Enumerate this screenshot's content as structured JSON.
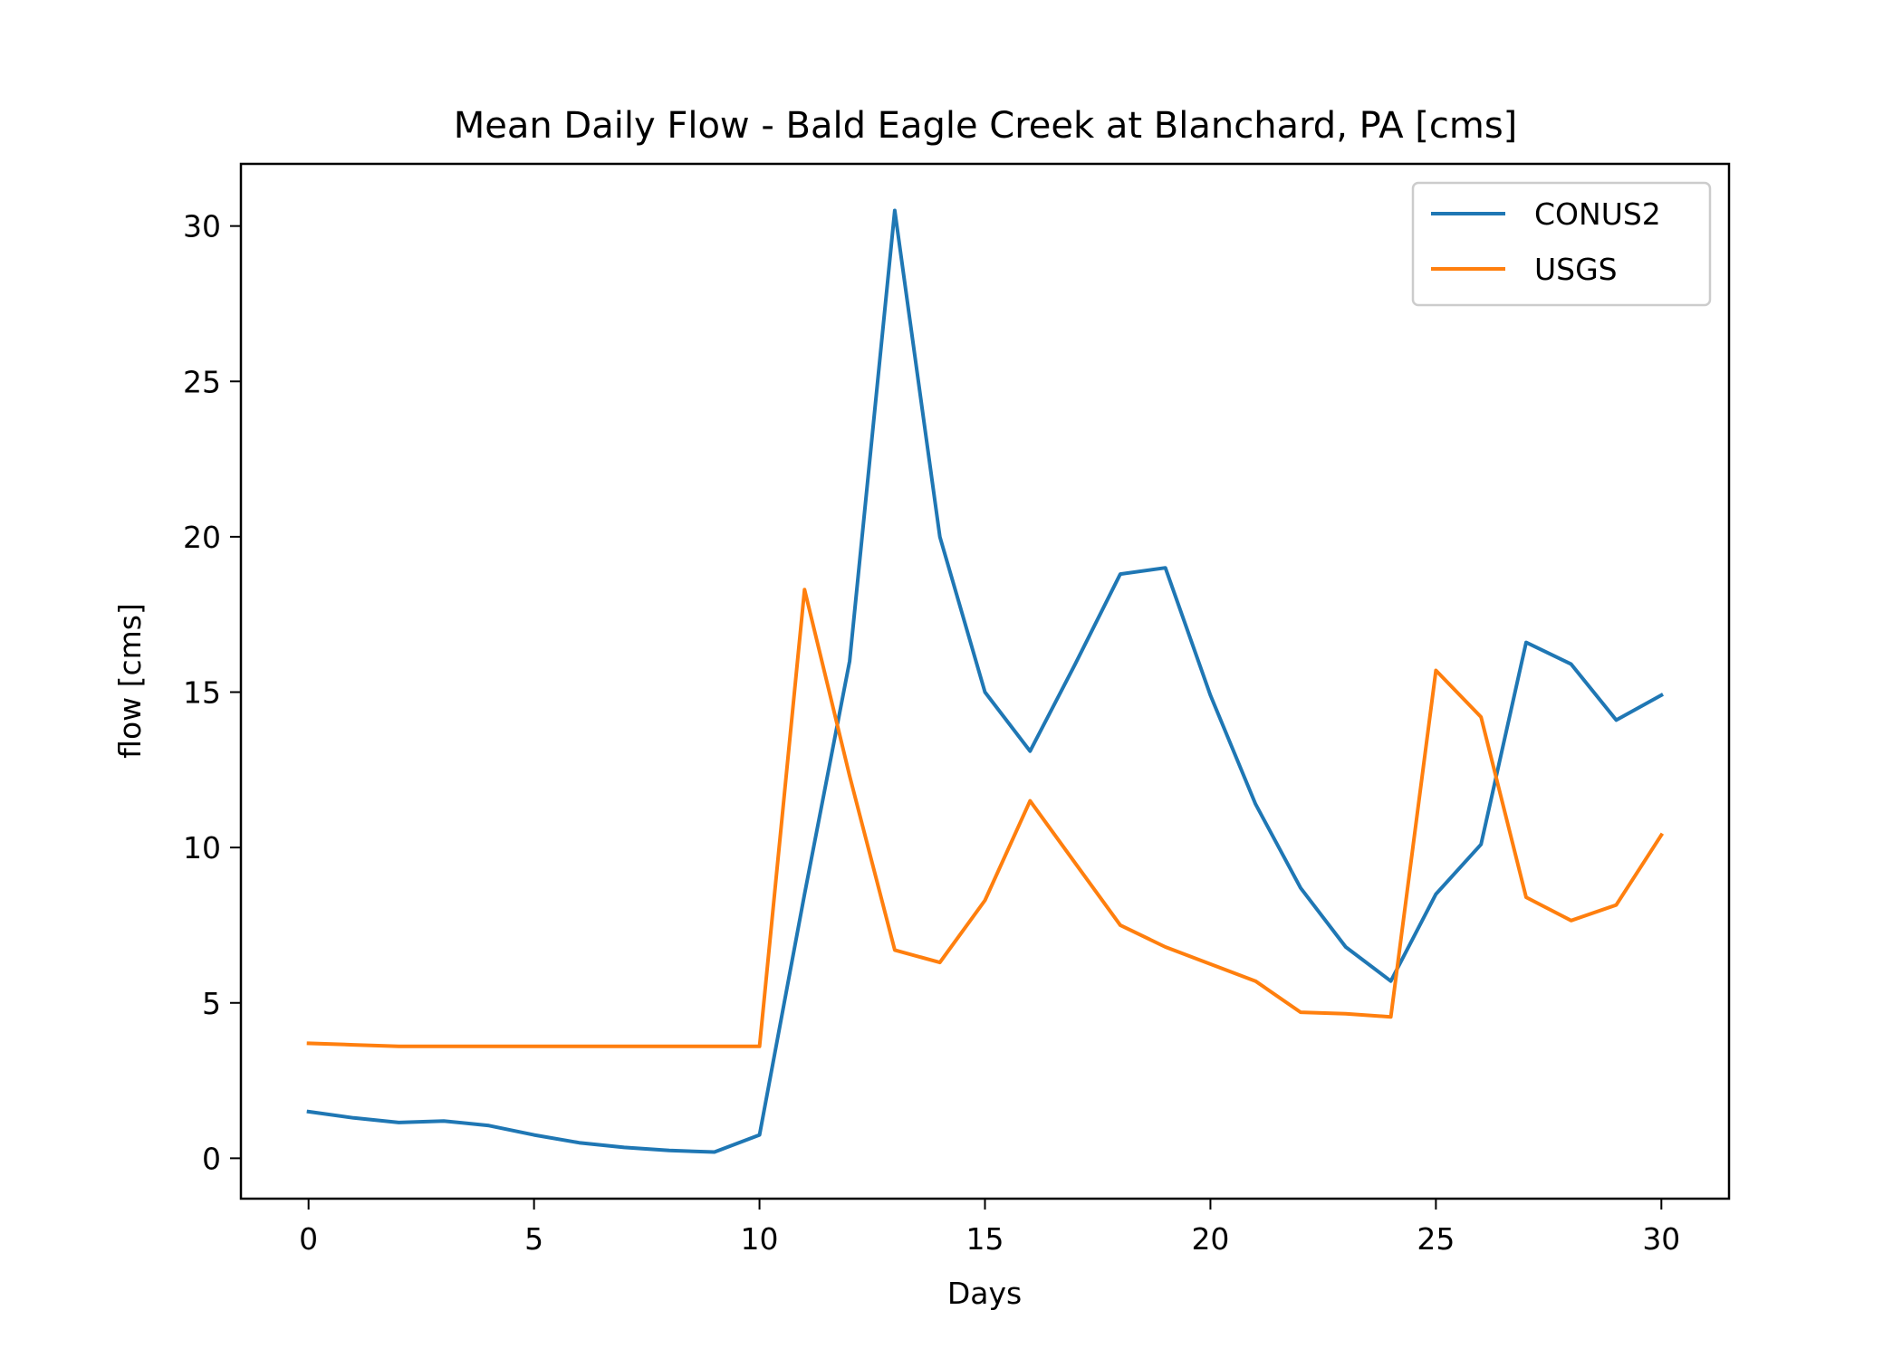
{
  "chart_data": {
    "type": "line",
    "title": "Mean Daily Flow - Bald Eagle Creek at Blanchard, PA [cms]",
    "xlabel": "Days",
    "ylabel": "flow [cms]",
    "xlim": [
      -1.5,
      31.5
    ],
    "ylim": [
      -1.3,
      32.0
    ],
    "xticks": [
      0,
      5,
      10,
      15,
      20,
      25,
      30
    ],
    "yticks": [
      0,
      5,
      10,
      15,
      20,
      25,
      30
    ],
    "grid": false,
    "legend_position": "top-right",
    "x": [
      0,
      1,
      2,
      3,
      4,
      5,
      6,
      7,
      8,
      9,
      10,
      11,
      12,
      13,
      14,
      15,
      16,
      17,
      18,
      19,
      20,
      21,
      22,
      23,
      24,
      25,
      26,
      27,
      28,
      29,
      30
    ],
    "series": [
      {
        "name": "CONUS2",
        "color": "#1f77b4",
        "values": [
          1.5,
          1.3,
          1.15,
          1.2,
          1.05,
          0.75,
          0.5,
          0.35,
          0.25,
          0.2,
          0.75,
          8.5,
          16.0,
          30.5,
          20.0,
          15.0,
          13.1,
          15.9,
          18.8,
          19.0,
          14.9,
          11.4,
          8.7,
          6.8,
          5.7,
          8.5,
          10.1,
          16.6,
          15.9,
          14.1,
          14.9
        ]
      },
      {
        "name": "USGS",
        "color": "#ff7f0e",
        "values": [
          3.7,
          3.65,
          3.6,
          3.6,
          3.6,
          3.6,
          3.6,
          3.6,
          3.6,
          3.6,
          3.6,
          18.3,
          12.3,
          6.7,
          6.3,
          8.3,
          11.5,
          9.5,
          7.5,
          6.8,
          6.25,
          5.7,
          4.7,
          4.65,
          4.55,
          15.7,
          14.2,
          8.4,
          7.65,
          8.15,
          10.4
        ]
      }
    ]
  }
}
